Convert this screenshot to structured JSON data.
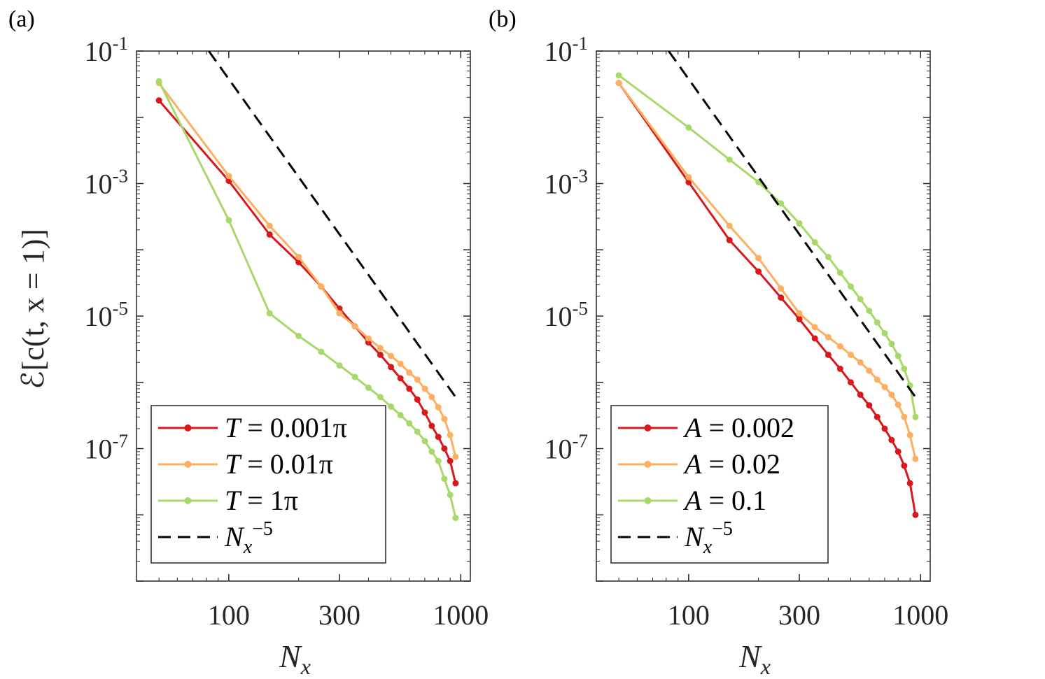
{
  "chart_data": [
    {
      "panel_label": "(a)",
      "type": "line",
      "xscale": "log",
      "yscale": "log",
      "xlabel_main": "N",
      "xlabel_sub": "x",
      "ylabel": "ℰ[c(t, x = 1)]",
      "xlim": [
        40,
        1100
      ],
      "ylim": [
        1e-09,
        0.1
      ],
      "xticks": [
        100,
        300,
        1000
      ],
      "xtick_labels": [
        "100",
        "300",
        "1000"
      ],
      "yticks": [
        0.1,
        0.001,
        1e-05,
        1e-07
      ],
      "ytick_labels": [
        {
          "base": "10",
          "exp": "-1"
        },
        {
          "base": "10",
          "exp": "-3"
        },
        {
          "base": "10",
          "exp": "-5"
        },
        {
          "base": "10",
          "exp": "-7"
        }
      ],
      "legend_position": "bottom-left",
      "series": [
        {
          "name": "T = 0.001π",
          "label_var": "T",
          "label_val": "0.001π",
          "color": "#d7191c",
          "style": "solid-marker",
          "x": [
            50,
            100,
            150,
            200,
            250,
            300,
            350,
            400,
            450,
            500,
            550,
            600,
            650,
            700,
            750,
            800,
            850,
            900,
            950
          ],
          "y": [
            0.018,
            0.0011,
            0.00017,
            6.5e-05,
            2.8e-05,
            1.3e-05,
            7e-06,
            4e-06,
            2.6e-06,
            1.7e-06,
            1.15e-06,
            8e-07,
            5.5e-07,
            3.5e-07,
            2.2e-07,
            1.5e-07,
            1e-07,
            6.5e-08,
            3e-08
          ]
        },
        {
          "name": "T = 0.01π",
          "label_var": "T",
          "label_val": "0.01π",
          "color": "#fdae61",
          "style": "solid-marker",
          "x": [
            50,
            100,
            150,
            200,
            250,
            300,
            350,
            400,
            450,
            500,
            550,
            600,
            650,
            700,
            750,
            800,
            850,
            900,
            950
          ],
          "y": [
            0.033,
            0.0013,
            0.00023,
            7.8e-05,
            2.8e-05,
            1.1e-05,
            7e-06,
            4.6e-06,
            3.3e-06,
            2.5e-06,
            1.9e-06,
            1.4e-06,
            1.1e-06,
            8e-07,
            6e-07,
            4.2e-07,
            2.8e-07,
            1.6e-07,
            7.5e-08
          ]
        },
        {
          "name": "T = 1π",
          "label_var": "T",
          "label_val": "1π",
          "color": "#a6d96a",
          "style": "solid-marker",
          "x": [
            50,
            100,
            150,
            200,
            250,
            300,
            350,
            400,
            450,
            500,
            550,
            600,
            650,
            700,
            750,
            800,
            850,
            900,
            950
          ],
          "y": [
            0.035,
            0.00028,
            1.1e-05,
            5e-06,
            2.9e-06,
            1.8e-06,
            1.2e-06,
            8.3e-07,
            6e-07,
            4.3e-07,
            3.2e-07,
            2.4e-07,
            1.8e-07,
            1.3e-07,
            9e-08,
            6.5e-08,
            3.5e-08,
            2e-08,
            9e-09
          ]
        },
        {
          "name": "N_x^-5",
          "label_var": "N",
          "label_val": "",
          "color": "#000000",
          "style": "dashed",
          "x": [
            82,
            950
          ],
          "y": [
            0.1,
            6e-07
          ]
        }
      ]
    },
    {
      "panel_label": "(b)",
      "type": "line",
      "xscale": "log",
      "yscale": "log",
      "xlabel_main": "N",
      "xlabel_sub": "x",
      "ylabel": "",
      "xlim": [
        40,
        1100
      ],
      "ylim": [
        1e-09,
        0.1
      ],
      "xticks": [
        100,
        300,
        1000
      ],
      "xtick_labels": [
        "100",
        "300",
        "1000"
      ],
      "yticks": [
        0.1,
        0.001,
        1e-05,
        1e-07
      ],
      "ytick_labels": [
        {
          "base": "10",
          "exp": "-1"
        },
        {
          "base": "10",
          "exp": "-3"
        },
        {
          "base": "10",
          "exp": "-5"
        },
        {
          "base": "10",
          "exp": "-7"
        }
      ],
      "legend_position": "bottom-left",
      "series": [
        {
          "name": "A = 0.002",
          "label_var": "A",
          "label_val": "0.002",
          "color": "#d7191c",
          "style": "solid-marker",
          "x": [
            50,
            100,
            150,
            200,
            250,
            300,
            350,
            400,
            450,
            500,
            550,
            600,
            650,
            700,
            750,
            800,
            850,
            900,
            950
          ],
          "y": [
            0.033,
            0.00105,
            0.00014,
            4.7e-05,
            1.9e-05,
            9e-06,
            4.6e-06,
            2.6e-06,
            1.6e-06,
            1e-06,
            6.5e-07,
            4.5e-07,
            3e-07,
            2e-07,
            1.35e-07,
            9e-08,
            5.5e-08,
            3e-08,
            1e-08
          ]
        },
        {
          "name": "A = 0.02",
          "label_var": "A",
          "label_val": "0.02",
          "color": "#fdae61",
          "style": "solid-marker",
          "x": [
            50,
            100,
            150,
            200,
            250,
            300,
            350,
            400,
            450,
            500,
            550,
            600,
            650,
            700,
            750,
            800,
            850,
            900,
            950
          ],
          "y": [
            0.033,
            0.00125,
            0.00023,
            7.5e-05,
            2.6e-05,
            1.1e-05,
            6.8e-06,
            4.8e-06,
            3.5e-06,
            2.6e-06,
            2e-06,
            1.5e-06,
            1.1e-06,
            8.5e-07,
            6.5e-07,
            4.6e-07,
            3e-07,
            1.6e-07,
            7e-08
          ]
        },
        {
          "name": "A = 0.1",
          "label_var": "A",
          "label_val": "0.1",
          "color": "#a6d96a",
          "style": "solid-marker",
          "x": [
            50,
            100,
            150,
            200,
            250,
            300,
            350,
            400,
            450,
            500,
            550,
            600,
            650,
            700,
            750,
            800,
            850,
            900,
            950
          ],
          "y": [
            0.043,
            0.007,
            0.0023,
            0.00105,
            0.0005,
            0.00025,
            0.00013,
            7.8e-05,
            4.5e-05,
            2.8e-05,
            1.8e-05,
            1.2e-05,
            8e-06,
            5.5e-06,
            3.8e-06,
            2.5e-06,
            1.6e-06,
            9e-07,
            3e-07
          ]
        },
        {
          "name": "N_x^-5",
          "label_var": "N",
          "label_val": "",
          "color": "#000000",
          "style": "dashed",
          "x": [
            82,
            950
          ],
          "y": [
            0.1,
            6e-07
          ]
        }
      ]
    }
  ]
}
